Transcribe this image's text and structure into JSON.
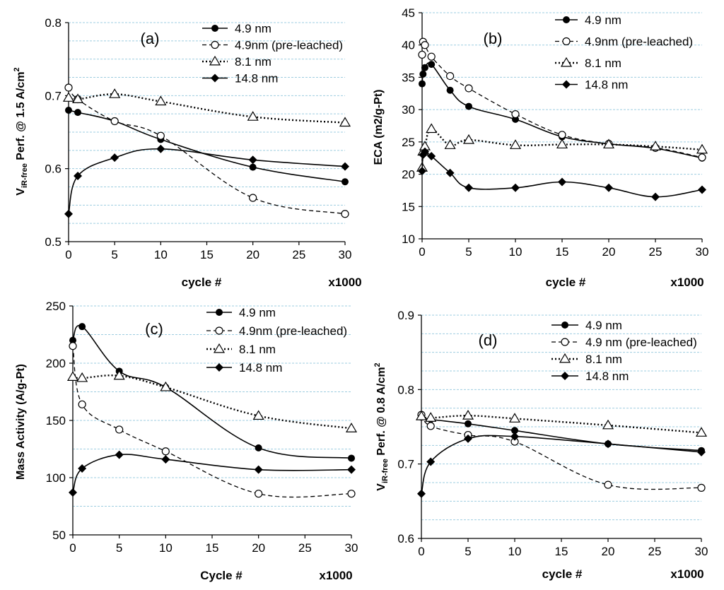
{
  "chart_data": [
    {
      "type": "line",
      "panel_label": "(a)",
      "title": "",
      "xlabel": "cycle #",
      "x_unit_note": "x1000",
      "ylabel_main": "V",
      "ylabel_sub": "iR-free",
      "ylabel_rest": " Perf. @ 1.5 A/cm",
      "ylabel_sup": "2",
      "xlim": [
        0,
        30
      ],
      "xticks": [
        "0",
        "5",
        "10",
        "15",
        "20",
        "25",
        "30"
      ],
      "ylim": [
        0.5,
        0.8
      ],
      "yticks": [
        "0.5",
        "0.6",
        "0.7",
        "0.8"
      ],
      "gridlines": [
        0.525,
        0.55,
        0.575,
        0.6,
        0.625,
        0.65,
        0.675,
        0.7,
        0.725,
        0.75,
        0.775,
        0.8
      ],
      "legend": [
        "4.9 nm",
        "4.9nm (pre-leached)",
        "8.1 nm",
        "14.8 nm"
      ],
      "series": [
        {
          "name": "4.9 nm",
          "x": [
            0,
            1,
            5,
            10,
            20,
            30
          ],
          "y": [
            0.68,
            0.677,
            0.665,
            0.64,
            0.602,
            0.582
          ]
        },
        {
          "name": "4.9nm (pre-leached)",
          "x": [
            0,
            1,
            5,
            10,
            20,
            30
          ],
          "y": [
            0.711,
            0.695,
            0.665,
            0.645,
            0.56,
            0.538
          ]
        },
        {
          "name": "8.1 nm",
          "x": [
            0,
            1,
            5,
            10,
            20,
            30
          ],
          "y": [
            0.697,
            0.695,
            0.702,
            0.692,
            0.671,
            0.663
          ]
        },
        {
          "name": "14.8 nm",
          "x": [
            0,
            1,
            5,
            10,
            20,
            30
          ],
          "y": [
            0.538,
            0.59,
            0.615,
            0.627,
            0.612,
            0.603
          ]
        }
      ]
    },
    {
      "type": "line",
      "panel_label": "(b)",
      "title": "",
      "xlabel": "cycle #",
      "x_unit_note": "x1000",
      "ylabel_main": "ECA (m2/g-Pt)",
      "xlim": [
        0,
        30
      ],
      "xticks": [
        "0",
        "5",
        "10",
        "15",
        "20",
        "25",
        "30"
      ],
      "ylim": [
        10,
        45
      ],
      "yticks": [
        "10",
        "15",
        "20",
        "25",
        "30",
        "35",
        "40",
        "45"
      ],
      "gridlines": [
        15,
        20,
        25,
        30,
        35,
        40,
        45
      ],
      "legend": [
        "4.9 nm",
        "4.9nm (pre-leached)",
        "8.1 nm",
        "14.8 nm"
      ],
      "series": [
        {
          "name": "4.9 nm",
          "x": [
            0,
            0.1,
            0.3,
            1,
            3,
            5,
            10,
            15,
            20,
            25,
            30
          ],
          "y": [
            34,
            35.5,
            36.5,
            37,
            33,
            30.5,
            28.5,
            25.8,
            24.7,
            24,
            22.5
          ]
        },
        {
          "name": "4.9nm (pre-leached)",
          "x": [
            0,
            0.1,
            0.3,
            1,
            3,
            5,
            10,
            15,
            20,
            25,
            30
          ],
          "y": [
            38.5,
            40.5,
            40,
            38.2,
            35.2,
            33.3,
            29.3,
            26.1,
            24.7,
            24.1,
            22.6
          ]
        },
        {
          "name": "8.1 nm",
          "x": [
            0,
            0.1,
            0.3,
            1,
            3,
            5,
            10,
            15,
            20,
            25,
            30
          ],
          "y": [
            21,
            23.5,
            24.3,
            27,
            24.5,
            25.3,
            24.5,
            24.6,
            24.6,
            24.3,
            23.8
          ]
        },
        {
          "name": "14.8 nm",
          "x": [
            0,
            0.1,
            0.3,
            1,
            3,
            5,
            10,
            15,
            20,
            25,
            30
          ],
          "y": [
            20.5,
            23,
            23.5,
            22.8,
            20.2,
            17.9,
            17.9,
            18.8,
            17.9,
            16.5,
            17.6
          ]
        }
      ]
    },
    {
      "type": "line",
      "panel_label": "(c)",
      "title": "",
      "xlabel": "Cycle #",
      "x_unit_note": "x1000",
      "ylabel_main": "Mass Activity (A/g-Pt)",
      "xlim": [
        0,
        30
      ],
      "xticks": [
        "0",
        "5",
        "10",
        "15",
        "20",
        "25",
        "30"
      ],
      "ylim": [
        50,
        250
      ],
      "yticks": [
        "50",
        "100",
        "150",
        "200",
        "250"
      ],
      "gridlines": [
        75,
        100,
        125,
        150,
        175,
        200,
        225,
        250
      ],
      "legend": [
        "4.9 nm",
        "4.9nm (pre-leached)",
        "8.1 nm",
        "14.8 nm"
      ],
      "series": [
        {
          "name": "4.9 nm",
          "x": [
            0,
            1,
            5,
            10,
            20,
            30
          ],
          "y": [
            220,
            232,
            193,
            179,
            126,
            117
          ]
        },
        {
          "name": "4.9nm (pre-leached)",
          "x": [
            0,
            1,
            5,
            10,
            20,
            30
          ],
          "y": [
            215,
            164,
            142,
            123,
            86,
            86
          ]
        },
        {
          "name": "8.1 nm",
          "x": [
            0,
            1,
            5,
            10,
            20,
            30
          ],
          "y": [
            188,
            187,
            189,
            179,
            154,
            143
          ]
        },
        {
          "name": "14.8 nm",
          "x": [
            0,
            1,
            5,
            10,
            20,
            30
          ],
          "y": [
            87,
            108,
            120,
            116,
            107,
            107
          ]
        }
      ]
    },
    {
      "type": "line",
      "panel_label": "(d)",
      "title": "",
      "xlabel": "cycle #",
      "x_unit_note": "x1000",
      "ylabel_main": "V",
      "ylabel_sub": "iR-free",
      "ylabel_rest": " Perf. @ 0.8 A/cm",
      "ylabel_sup": "2",
      "xlim": [
        0,
        30
      ],
      "xticks": [
        "0",
        "5",
        "10",
        "15",
        "20",
        "25",
        "30"
      ],
      "ylim": [
        0.6,
        0.9
      ],
      "yticks": [
        "0.6",
        "0.7",
        "0.8",
        "0.9"
      ],
      "gridlines": [
        0.625,
        0.65,
        0.675,
        0.7,
        0.725,
        0.75,
        0.775,
        0.8,
        0.825,
        0.85,
        0.875,
        0.9
      ],
      "legend": [
        "4.9 nm",
        "4.9 nm (pre-leached)",
        "8.1 nm",
        "14.8 nm"
      ],
      "series": [
        {
          "name": "4.9 nm",
          "x": [
            0,
            1,
            5,
            10,
            20,
            30
          ],
          "y": [
            0.763,
            0.76,
            0.754,
            0.745,
            0.727,
            0.718
          ]
        },
        {
          "name": "4.9 nm (pre-leached)",
          "x": [
            0,
            1,
            5,
            10,
            20,
            30
          ],
          "y": [
            0.766,
            0.751,
            0.739,
            0.73,
            0.672,
            0.668
          ]
        },
        {
          "name": "8.1 nm",
          "x": [
            0,
            1,
            5,
            10,
            20,
            30
          ],
          "y": [
            0.764,
            0.762,
            0.765,
            0.761,
            0.752,
            0.742
          ]
        },
        {
          "name": "14.8 nm",
          "x": [
            0,
            1,
            5,
            10,
            20,
            30
          ],
          "y": [
            0.66,
            0.703,
            0.734,
            0.737,
            0.727,
            0.716
          ]
        }
      ]
    }
  ]
}
